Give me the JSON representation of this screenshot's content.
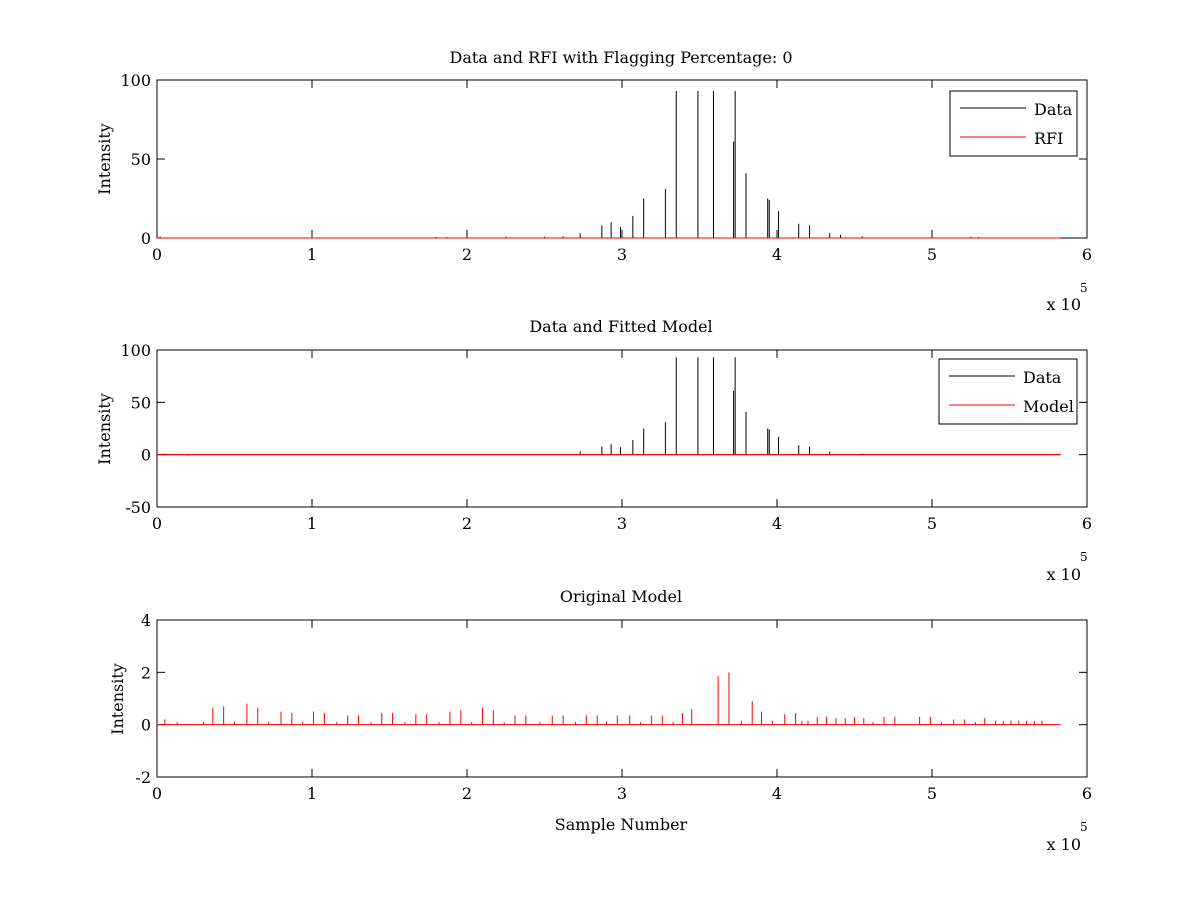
{
  "chart_data": [
    {
      "type": "line",
      "title": "Data and RFI with Flagging Percentage: 0",
      "xlabel": "",
      "ylabel": "Intensity",
      "xlim": [
        0,
        6
      ],
      "ylim": [
        0,
        100
      ],
      "xticks": [
        "0",
        "1",
        "2",
        "3",
        "4",
        "5",
        "6"
      ],
      "yticks": [
        {
          "value": 0,
          "label": "0"
        },
        {
          "value": 50,
          "label": "50"
        },
        {
          "value": 100,
          "label": "100"
        }
      ],
      "x_multiplier": {
        "base": "x 10",
        "exponent": "5"
      },
      "legend": {
        "position": "top-right",
        "entries": [
          {
            "name": "Data",
            "color": "#000000"
          },
          {
            "name": "RFI",
            "color": "#ff0000"
          }
        ]
      },
      "baseline_end": 5.83,
      "series": [
        {
          "name": "Data",
          "color": "#000000",
          "spikes": [
            [
              0.02,
              1
            ],
            [
              1.8,
              0.6
            ],
            [
              1.87,
              0.7
            ],
            [
              2.0,
              1.5
            ],
            [
              2.25,
              0.8
            ],
            [
              2.5,
              0.8
            ],
            [
              2.62,
              1.0
            ],
            [
              2.73,
              3
            ],
            [
              2.87,
              8
            ],
            [
              2.93,
              10
            ],
            [
              2.99,
              7
            ],
            [
              3.07,
              14
            ],
            [
              3.14,
              25
            ],
            [
              3.28,
              31
            ],
            [
              3.35,
              93
            ],
            [
              3.49,
              93
            ],
            [
              3.59,
              93
            ],
            [
              3.72,
              61
            ],
            [
              3.73,
              93
            ],
            [
              3.8,
              41
            ],
            [
              3.94,
              25
            ],
            [
              3.95,
              24
            ],
            [
              4.01,
              17
            ],
            [
              4.14,
              9
            ],
            [
              4.21,
              8
            ],
            [
              4.34,
              3
            ],
            [
              4.41,
              2
            ],
            [
              4.55,
              1
            ],
            [
              5.25,
              0.8
            ],
            [
              5.3,
              0.7
            ]
          ]
        },
        {
          "name": "RFI",
          "color": "#ff0000",
          "spikes": []
        }
      ]
    },
    {
      "type": "line",
      "title": "Data and Fitted Model",
      "xlabel": "",
      "ylabel": "Intensity",
      "xlim": [
        0,
        6
      ],
      "ylim": [
        -50,
        100
      ],
      "xticks": [
        "0",
        "1",
        "2",
        "3",
        "4",
        "5",
        "6"
      ],
      "yticks": [
        {
          "value": -50,
          "label": "-50"
        },
        {
          "value": 0,
          "label": "0"
        },
        {
          "value": 50,
          "label": "50"
        },
        {
          "value": 100,
          "label": "100"
        }
      ],
      "x_multiplier": {
        "base": "x 10",
        "exponent": "5"
      },
      "legend": {
        "position": "top-right",
        "entries": [
          {
            "name": "Data",
            "color": "#000000"
          },
          {
            "name": "Model",
            "color": "#ff0000"
          }
        ]
      },
      "baseline_end": 5.83,
      "series": [
        {
          "name": "Data",
          "color": "#000000",
          "spikes": [
            [
              0.05,
              1
            ],
            [
              0.2,
              -0.8
            ],
            [
              2.73,
              3
            ],
            [
              2.87,
              8
            ],
            [
              2.93,
              10
            ],
            [
              2.99,
              7
            ],
            [
              3.07,
              14
            ],
            [
              3.14,
              25
            ],
            [
              3.28,
              31
            ],
            [
              3.35,
              93
            ],
            [
              3.49,
              93
            ],
            [
              3.59,
              93
            ],
            [
              3.72,
              61
            ],
            [
              3.73,
              93
            ],
            [
              3.8,
              41
            ],
            [
              3.94,
              25
            ],
            [
              3.95,
              24
            ],
            [
              4.01,
              17
            ],
            [
              4.14,
              9
            ],
            [
              4.21,
              8
            ],
            [
              4.34,
              3
            ],
            [
              4.55,
              1
            ]
          ]
        },
        {
          "name": "Model",
          "color": "#ff0000",
          "spikes": []
        }
      ]
    },
    {
      "type": "line",
      "title": "Original Model",
      "xlabel": "Sample Number",
      "ylabel": "Intensity",
      "xlim": [
        0,
        6
      ],
      "ylim": [
        -2,
        4
      ],
      "xticks": [
        "0",
        "1",
        "2",
        "3",
        "4",
        "5",
        "6"
      ],
      "yticks": [
        {
          "value": -2,
          "label": "-2"
        },
        {
          "value": 0,
          "label": "0"
        },
        {
          "value": 2,
          "label": "2"
        },
        {
          "value": 4,
          "label": "4"
        }
      ],
      "x_multiplier": {
        "base": "x 10",
        "exponent": "5"
      },
      "legend": null,
      "baseline_end": 5.83,
      "series": [
        {
          "name": "",
          "color": "#ff0000",
          "spikes": [
            [
              0.05,
              0.2
            ],
            [
              0.13,
              0.1
            ],
            [
              0.3,
              0.1
            ],
            [
              0.36,
              0.65
            ],
            [
              0.43,
              0.7
            ],
            [
              0.5,
              0.1
            ],
            [
              0.58,
              0.8
            ],
            [
              0.65,
              0.65
            ],
            [
              0.72,
              0.1
            ],
            [
              0.8,
              0.5
            ],
            [
              0.87,
              0.45
            ],
            [
              0.94,
              0.1
            ],
            [
              1.01,
              0.5
            ],
            [
              1.08,
              0.45
            ],
            [
              1.16,
              0.1
            ],
            [
              1.23,
              0.35
            ],
            [
              1.3,
              0.35
            ],
            [
              1.38,
              0.1
            ],
            [
              1.45,
              0.45
            ],
            [
              1.52,
              0.45
            ],
            [
              1.6,
              0.1
            ],
            [
              1.67,
              0.4
            ],
            [
              1.74,
              0.4
            ],
            [
              1.82,
              0.1
            ],
            [
              1.89,
              0.5
            ],
            [
              1.96,
              0.55
            ],
            [
              2.03,
              0.1
            ],
            [
              2.1,
              0.65
            ],
            [
              2.17,
              0.55
            ],
            [
              2.24,
              0.1
            ],
            [
              2.31,
              0.35
            ],
            [
              2.38,
              0.35
            ],
            [
              2.47,
              0.1
            ],
            [
              2.55,
              0.35
            ],
            [
              2.62,
              0.35
            ],
            [
              2.7,
              0.1
            ],
            [
              2.77,
              0.35
            ],
            [
              2.84,
              0.35
            ],
            [
              2.9,
              0.1
            ],
            [
              2.97,
              0.35
            ],
            [
              3.05,
              0.35
            ],
            [
              3.12,
              0.1
            ],
            [
              3.19,
              0.35
            ],
            [
              3.26,
              0.35
            ],
            [
              3.33,
              0.1
            ],
            [
              3.39,
              0.45
            ],
            [
              3.45,
              0.6
            ],
            [
              3.62,
              1.85
            ],
            [
              3.69,
              2.0
            ],
            [
              3.77,
              0.15
            ],
            [
              3.84,
              0.9
            ],
            [
              3.9,
              0.5
            ],
            [
              3.97,
              0.15
            ],
            [
              4.05,
              0.4
            ],
            [
              4.12,
              0.45
            ],
            [
              4.16,
              0.15
            ],
            [
              4.2,
              0.15
            ],
            [
              4.26,
              0.3
            ],
            [
              4.32,
              0.3
            ],
            [
              4.38,
              0.25
            ],
            [
              4.44,
              0.25
            ],
            [
              4.5,
              0.3
            ],
            [
              4.56,
              0.25
            ],
            [
              4.62,
              0.1
            ],
            [
              4.69,
              0.3
            ],
            [
              4.76,
              0.3
            ],
            [
              4.92,
              0.3
            ],
            [
              4.99,
              0.3
            ],
            [
              5.06,
              0.1
            ],
            [
              5.14,
              0.2
            ],
            [
              5.21,
              0.2
            ],
            [
              5.28,
              0.1
            ],
            [
              5.34,
              0.25
            ],
            [
              5.41,
              0.15
            ],
            [
              5.46,
              0.15
            ],
            [
              5.51,
              0.15
            ],
            [
              5.56,
              0.15
            ],
            [
              5.61,
              0.15
            ],
            [
              5.66,
              0.15
            ],
            [
              5.71,
              0.15
            ]
          ]
        }
      ]
    }
  ]
}
